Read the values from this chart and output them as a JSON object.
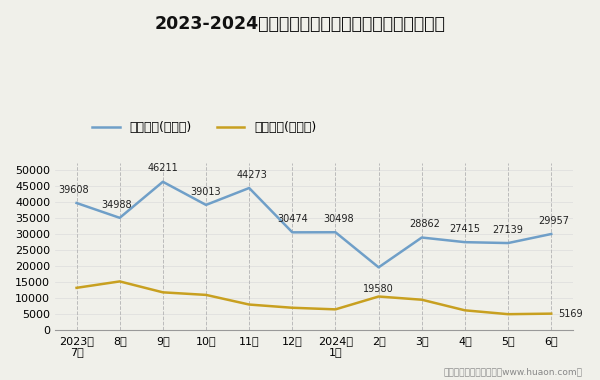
{
  "title": "2023-2024年吉安市商品收发货人所在地进、出口额",
  "x_labels": [
    "2023年\n7月",
    "8月",
    "9月",
    "10月",
    "11月",
    "12月",
    "2024年\n1月",
    "2月",
    "3月",
    "4月",
    "5月",
    "6月"
  ],
  "export_values": [
    39608,
    34988,
    46211,
    39013,
    44273,
    30474,
    30498,
    19580,
    28862,
    27415,
    27139,
    29957
  ],
  "import_values": [
    13200,
    15200,
    11800,
    11000,
    8000,
    7000,
    6500,
    10500,
    9500,
    6200,
    5000,
    5169
  ],
  "export_label": "出口总额(万美元)",
  "import_label": "进口总额(万美元)",
  "export_color": "#6f9fc8",
  "import_color": "#c8a020",
  "ylim": [
    0,
    52000
  ],
  "yticks": [
    0,
    5000,
    10000,
    15000,
    20000,
    25000,
    30000,
    35000,
    40000,
    45000,
    50000
  ],
  "grid_color": "#bbbbbb",
  "bg_color": "#f0f0ea",
  "footer": "制图：华经产业研究院（www.huaon.com）"
}
